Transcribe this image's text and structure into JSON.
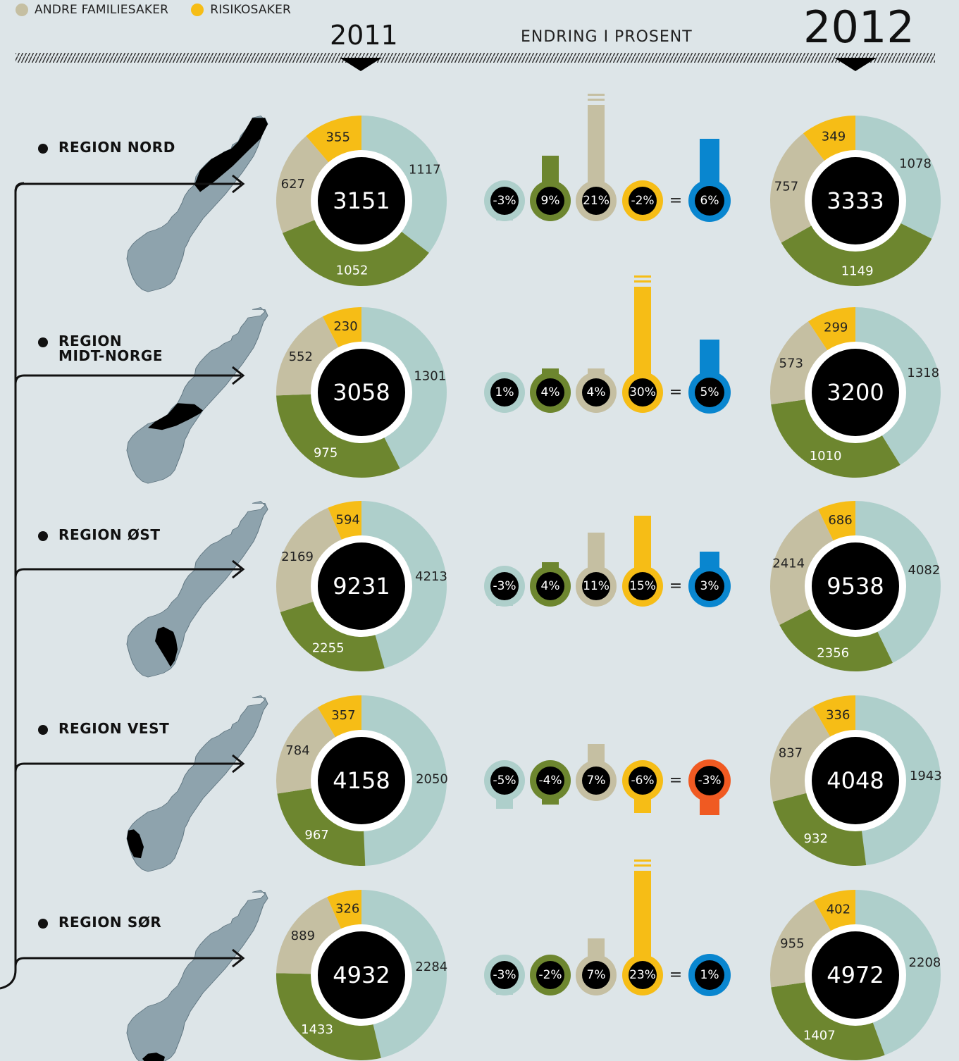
{
  "legend": [
    {
      "label": "ANDRE FAMILIESAKER",
      "color": "#c5bfa2"
    },
    {
      "label": "RISIKOSAKER",
      "color": "#f6bd16"
    }
  ],
  "header": {
    "year_left": "2011",
    "year_right": "2012",
    "change_heading": "ENDRING I PROSENT"
  },
  "colors": {
    "mint": "#aecfcb",
    "olive": "#6d862f",
    "beige": "#c5bfa2",
    "yellow": "#f6bd16",
    "blue": "#0986cf",
    "orange": "#f05a22",
    "map": "#8ea3ad",
    "highlight": "#000000"
  },
  "chart_data": {
    "type": "donut",
    "series_order": [
      "mint",
      "olive",
      "beige",
      "yellow"
    ],
    "regions": [
      {
        "name_lines": [
          "REGION NORD"
        ],
        "y2011": {
          "total": "3151",
          "values": [
            1117,
            1052,
            627,
            355
          ]
        },
        "y2012": {
          "total": "3333",
          "values": [
            1078,
            1149,
            757,
            349
          ]
        },
        "changes": [
          "-3%",
          "9%",
          "21%",
          "-2%"
        ],
        "total_change": "6%",
        "total_color": "blue"
      },
      {
        "name_lines": [
          "REGION",
          "MIDT-NORGE"
        ],
        "y2011": {
          "total": "3058",
          "values": [
            1301,
            975,
            552,
            230
          ]
        },
        "y2012": {
          "total": "3200",
          "values": [
            1318,
            1010,
            573,
            299
          ]
        },
        "changes": [
          "1%",
          "4%",
          "4%",
          "30%"
        ],
        "total_change": "5%",
        "total_color": "blue"
      },
      {
        "name_lines": [
          "REGION ØST"
        ],
        "y2011": {
          "total": "9231",
          "values": [
            4213,
            2255,
            2169,
            594
          ]
        },
        "y2012": {
          "total": "9538",
          "values": [
            4082,
            2356,
            2414,
            686
          ]
        },
        "changes": [
          "-3%",
          "4%",
          "11%",
          "15%"
        ],
        "total_change": "3%",
        "total_color": "blue"
      },
      {
        "name_lines": [
          "REGION VEST"
        ],
        "y2011": {
          "total": "4158",
          "values": [
            2050,
            967,
            784,
            357
          ]
        },
        "y2012": {
          "total": "4048",
          "values": [
            1943,
            932,
            837,
            336
          ]
        },
        "changes": [
          "-5%",
          "-4%",
          "7%",
          "-6%"
        ],
        "total_change": "-3%",
        "total_color": "orange"
      },
      {
        "name_lines": [
          "REGION SØR"
        ],
        "y2011": {
          "total": "4932",
          "values": [
            2284,
            1433,
            889,
            326
          ]
        },
        "y2012": {
          "total": "4972",
          "values": [
            2208,
            1407,
            955,
            402
          ]
        },
        "changes": [
          "-3%",
          "-2%",
          "7%",
          "23%"
        ],
        "total_change": "1%",
        "total_color": "blue"
      }
    ]
  }
}
